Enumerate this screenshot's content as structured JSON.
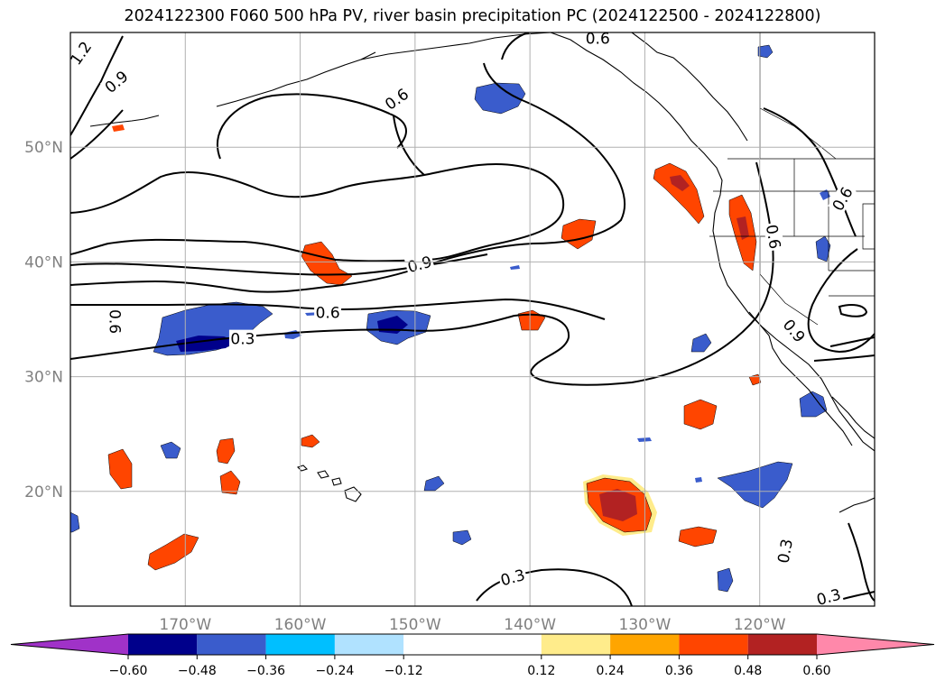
{
  "title": "2024122300 F060 500 hPa PV, river basin precipitation PC (2024122500 - 2024122800)",
  "map": {
    "lon_range": [
      -180,
      -110
    ],
    "lat_range": [
      10,
      60
    ],
    "lat_gridlines": [
      20,
      30,
      40,
      50
    ],
    "lon_gridlines": [
      -170,
      -160,
      -150,
      -140,
      -130,
      -120
    ],
    "lat_tick_labels": [
      "20°N",
      "30°N",
      "40°N",
      "50°N"
    ],
    "lon_tick_labels": [
      "170°W",
      "160°W",
      "150°W",
      "140°W",
      "130°W",
      "120°W"
    ],
    "grid": true,
    "tick_label_color": "#808080"
  },
  "contour_labels": [
    {
      "text": "1.2",
      "lon": -179.1,
      "lat": 58.2,
      "rot": -55
    },
    {
      "text": "0.9",
      "lon": -176.0,
      "lat": 55.7,
      "rot": -40
    },
    {
      "text": "0.6",
      "lon": -151.6,
      "lat": 54.2,
      "rot": -35
    },
    {
      "text": "0.6",
      "lon": -134.1,
      "lat": 59.5,
      "rot": 0
    },
    {
      "text": "0.9",
      "lon": -149.6,
      "lat": 39.8,
      "rot": -15
    },
    {
      "text": "0.6",
      "lon": -157.6,
      "lat": 35.6,
      "rot": 0
    },
    {
      "text": "0.6",
      "lon": -176.1,
      "lat": 34.8,
      "rot": 90
    },
    {
      "text": "0.3",
      "lon": -165.0,
      "lat": 33.3,
      "rot": 0
    },
    {
      "text": "0.6",
      "lon": -118.8,
      "lat": 42.2,
      "rot": 80
    },
    {
      "text": "0.6",
      "lon": -112.8,
      "lat": 45.5,
      "rot": -60
    },
    {
      "text": "0.9",
      "lon": -117.0,
      "lat": 34.0,
      "rot": 50
    },
    {
      "text": "0.3",
      "lon": -141.5,
      "lat": 12.5,
      "rot": -15
    },
    {
      "text": "0.3",
      "lon": -117.8,
      "lat": 14.8,
      "rot": -80
    },
    {
      "text": "0.3",
      "lon": -114.0,
      "lat": 10.8,
      "rot": -15
    }
  ],
  "colorbar": {
    "boundaries": [
      -0.72,
      -0.6,
      -0.48,
      -0.36,
      -0.24,
      -0.12,
      0.12,
      0.24,
      0.36,
      0.48,
      0.6,
      0.72
    ],
    "colors": [
      "#a032c8",
      "#00008b",
      "#3a5ccc",
      "#00bfff",
      "#b0e2ff",
      "#ffffff",
      "#ffec8b",
      "#ffa500",
      "#ff4500",
      "#b22222",
      "#ff88aa"
    ],
    "tick_labels": [
      "−0.60",
      "−0.48",
      "−0.36",
      "−0.24",
      "−0.12",
      "0.12",
      "0.24",
      "0.36",
      "0.48",
      "0.60"
    ],
    "extend": "both"
  }
}
